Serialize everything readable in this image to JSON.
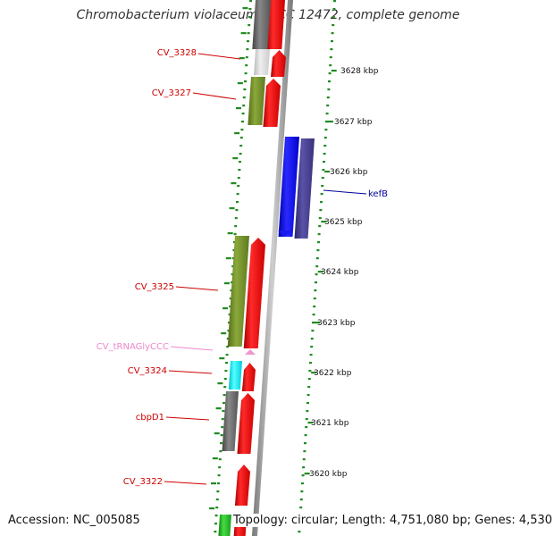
{
  "title": "Chromobacterium violaceum ATCC 12472, complete genome",
  "footer": {
    "accession": "Accession: NC_005085",
    "topology": "Topology: circular; Length: 4,751,080 bp; Genes: 4,530"
  },
  "colors": {
    "forward_gene": "#ee1111",
    "reverse_gene": "#7a9a2a",
    "kefB": "#1a1aee",
    "tick": "#228b22",
    "label_red": "#cc0000",
    "label_blue": "#000099",
    "label_pink": "#ee88cc"
  },
  "scale_labels": [
    "3628 kbp",
    "3627 kbp",
    "3626 kbp",
    "3625 kbp",
    "3624 kbp",
    "3623 kbp",
    "3622 kbp",
    "3621 kbp",
    "3620 kbp"
  ],
  "gene_labels": [
    {
      "text": "CV_3328",
      "color": "red"
    },
    {
      "text": "CV_3327",
      "color": "red"
    },
    {
      "text": "kefB",
      "color": "blue"
    },
    {
      "text": "CV_3325",
      "color": "red"
    },
    {
      "text": "CV_tRNAGlyCCC",
      "color": "pink"
    },
    {
      "text": "CV_3324",
      "color": "red"
    },
    {
      "text": "cbpD1",
      "color": "red"
    },
    {
      "text": "CV_3322",
      "color": "red"
    }
  ]
}
